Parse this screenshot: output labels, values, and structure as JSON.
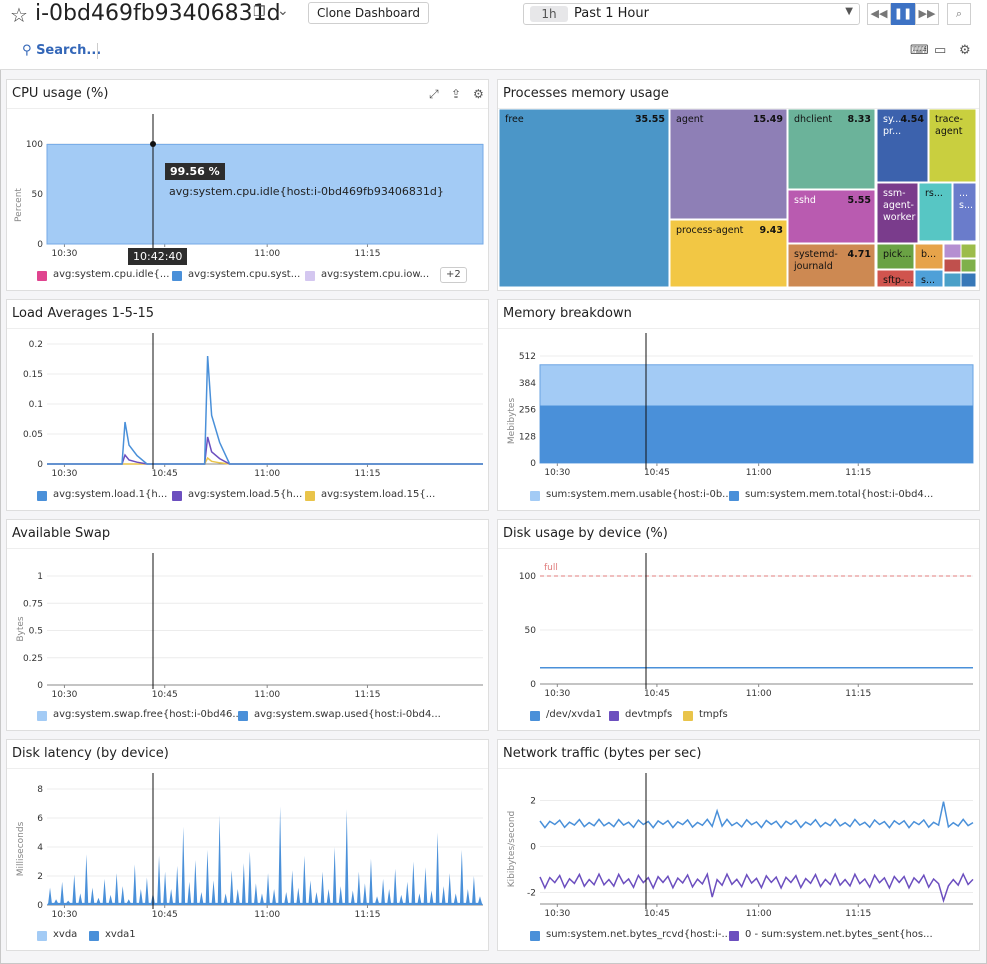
{
  "header": {
    "title": "i-0bd469fb93406831d",
    "clone_label": "Clone Dashboard",
    "time_badge": "1h",
    "time_label": "Past 1 Hour",
    "search_label": "Search..."
  },
  "icons": {
    "star": "star-icon",
    "copy": "copy-icon",
    "chevron": "chevron-down-icon",
    "rewind": "rewind-icon",
    "pause": "pause-icon",
    "forward": "forward-icon",
    "zoom": "zoom-icon",
    "search": "search-icon",
    "keyboard": "keyboard-icon",
    "tv": "tv-mode-icon",
    "settings": "gear-icon",
    "expand": "expand-icon",
    "export": "export-icon"
  },
  "colors": {
    "accent": "#3d72c4",
    "cpu_fill": "#a3cbf5"
  },
  "panels": {
    "cpu": {
      "title": "CPU usage (%)",
      "tooltip_value": "99.56 %",
      "tooltip_series": "avg:system.cpu.idle{host:i-0bd469fb93406831d}",
      "cursor_time": "10:42:40",
      "legend": [
        "avg:system.cpu.idle{...",
        "avg:system.cpu.syst...",
        "avg:system.cpu.iow..."
      ],
      "legend_more": "+2",
      "ylabel": "Percent"
    },
    "mem_proc": {
      "title": "Processes memory usage"
    },
    "load": {
      "title": "Load Averages 1-5-15",
      "legend": [
        "avg:system.load.1{h...",
        "avg:system.load.5{h...",
        "avg:system.load.15{..."
      ]
    },
    "mem_break": {
      "title": "Memory breakdown",
      "ylabel": "Mebibytes",
      "legend": [
        "sum:system.mem.usable{host:i-0b...",
        "sum:system.mem.total{host:i-0bd4..."
      ]
    },
    "swap": {
      "title": "Available Swap",
      "ylabel": "Bytes",
      "legend": [
        "avg:system.swap.free{host:i-0bd46...",
        "avg:system.swap.used{host:i-0bd4..."
      ]
    },
    "disk": {
      "title": "Disk usage by device (%)",
      "marker_label": "full",
      "legend": [
        "/dev/xvda1",
        "devtmpfs",
        "tmpfs"
      ]
    },
    "latency": {
      "title": "Disk latency (by device)",
      "ylabel": "Milliseconds",
      "legend": [
        "xvda",
        "xvda1"
      ]
    },
    "network": {
      "title": "Network traffic (bytes per sec)",
      "ylabel": "Kibibytes/second",
      "legend": [
        "sum:system.net.bytes_rcvd{host:i-...",
        "0 - sum:system.net.bytes_sent{hos..."
      ]
    }
  },
  "time_ticks": [
    "10:30",
    "10:45",
    "11:00",
    "11:15"
  ],
  "chart_data": [
    {
      "id": "cpu",
      "type": "area",
      "title": "CPU usage (%)",
      "ylabel": "Percent",
      "ylim": [
        0,
        100
      ],
      "yticks": [
        0,
        50,
        100
      ],
      "series": [
        {
          "name": "avg:system.cpu.idle",
          "values": [
            99.5,
            99.6,
            99.5,
            99.6,
            99.5
          ]
        }
      ]
    },
    {
      "id": "treemap",
      "type": "heatmap",
      "title": "Processes memory usage",
      "items": [
        {
          "label": "free",
          "value": 35.55,
          "color": "#4b96c8"
        },
        {
          "label": "agent",
          "value": 15.49,
          "color": "#8e7fb6"
        },
        {
          "label": "process-agent",
          "value": 9.43,
          "color": "#f2c744"
        },
        {
          "label": "dhclient",
          "value": 8.33,
          "color": "#6bb39a"
        },
        {
          "label": "sshd",
          "value": 5.55,
          "color": "#b95bb0"
        },
        {
          "label": "systemd-journald",
          "value": 4.71,
          "color": "#cd8952"
        },
        {
          "label": "sy... pr...",
          "value": 4.54,
          "color": "#3c62ad"
        },
        {
          "label": "trace-agent",
          "value": null,
          "color": "#c9cf3f"
        },
        {
          "label": "ssm-agent-worker",
          "value": null,
          "color": "#7a3c8c"
        },
        {
          "label": "rs...",
          "value": null,
          "color": "#57c6c4"
        },
        {
          "label": "... s...",
          "value": null,
          "color": "#6a7ccb"
        },
        {
          "label": "pick...",
          "value": null,
          "color": "#6aa244"
        },
        {
          "label": "b...",
          "value": null,
          "color": "#e6a34a"
        },
        {
          "label": "sftp-...",
          "value": null,
          "color": "#d0544e"
        },
        {
          "label": "s...",
          "value": null,
          "color": "#4fa0d8"
        }
      ]
    },
    {
      "id": "load",
      "type": "line",
      "title": "Load Averages 1-5-15",
      "ylim": [
        0,
        0.2
      ],
      "yticks": [
        0,
        0.05,
        0.1,
        0.15,
        0.2
      ],
      "series": [
        {
          "name": "avg:system.load.1",
          "peaks": [
            [
              10.37,
              0.07
            ],
            [
              10.55,
              0.18
            ]
          ]
        },
        {
          "name": "avg:system.load.5",
          "peaks": [
            [
              10.37,
              0.015
            ],
            [
              10.55,
              0.045
            ]
          ]
        },
        {
          "name": "avg:system.load.15",
          "peaks": [
            [
              10.55,
              0.01
            ]
          ]
        }
      ]
    },
    {
      "id": "membreak",
      "type": "area",
      "title": "Memory breakdown",
      "ylabel": "Mebibytes",
      "ylim": [
        0,
        512
      ],
      "yticks": [
        0,
        128,
        256,
        384,
        512
      ],
      "series": [
        {
          "name": "sum:system.mem.usable",
          "values": [
            470,
            470,
            470,
            470
          ]
        },
        {
          "name": "sum:system.mem.total",
          "values": [
            275,
            275,
            275,
            275
          ]
        }
      ]
    },
    {
      "id": "swap",
      "type": "line",
      "title": "Available Swap",
      "ylabel": "Bytes",
      "ylim": [
        0,
        1
      ],
      "yticks": [
        0,
        0.25,
        0.5,
        0.75,
        1
      ],
      "series": []
    },
    {
      "id": "disk",
      "type": "line",
      "title": "Disk usage by device (%)",
      "ylim": [
        0,
        100
      ],
      "yticks": [
        0,
        50,
        100
      ],
      "markers": [
        {
          "label": "full",
          "y": 100
        }
      ],
      "series": [
        {
          "name": "/dev/xvda1",
          "values": [
            15,
            15,
            15,
            15
          ]
        }
      ]
    },
    {
      "id": "latency",
      "type": "area",
      "title": "Disk latency (by device)",
      "ylabel": "Milliseconds",
      "ylim": [
        0,
        8
      ],
      "yticks": [
        0,
        2,
        4,
        6,
        8
      ],
      "series": [
        {
          "name": "xvda1",
          "values": [
            0.1,
            1.5,
            3.5,
            0.2,
            2,
            6.8,
            0.5,
            7
          ]
        }
      ]
    },
    {
      "id": "network",
      "type": "line",
      "title": "Network traffic (bytes per sec)",
      "ylabel": "Kibibytes/second",
      "ylim": [
        -2.5,
        2.5
      ],
      "yticks": [
        -2,
        0,
        2
      ],
      "series": [
        {
          "name": "sum:system.net.bytes_rcvd",
          "values": [
            1,
            1.1,
            0.9,
            1,
            1.9
          ]
        },
        {
          "name": "0 - sum:system.net.bytes_sent",
          "values": [
            -1.4,
            -1.6,
            -1.4,
            -1.5,
            -2.2
          ]
        }
      ]
    }
  ]
}
